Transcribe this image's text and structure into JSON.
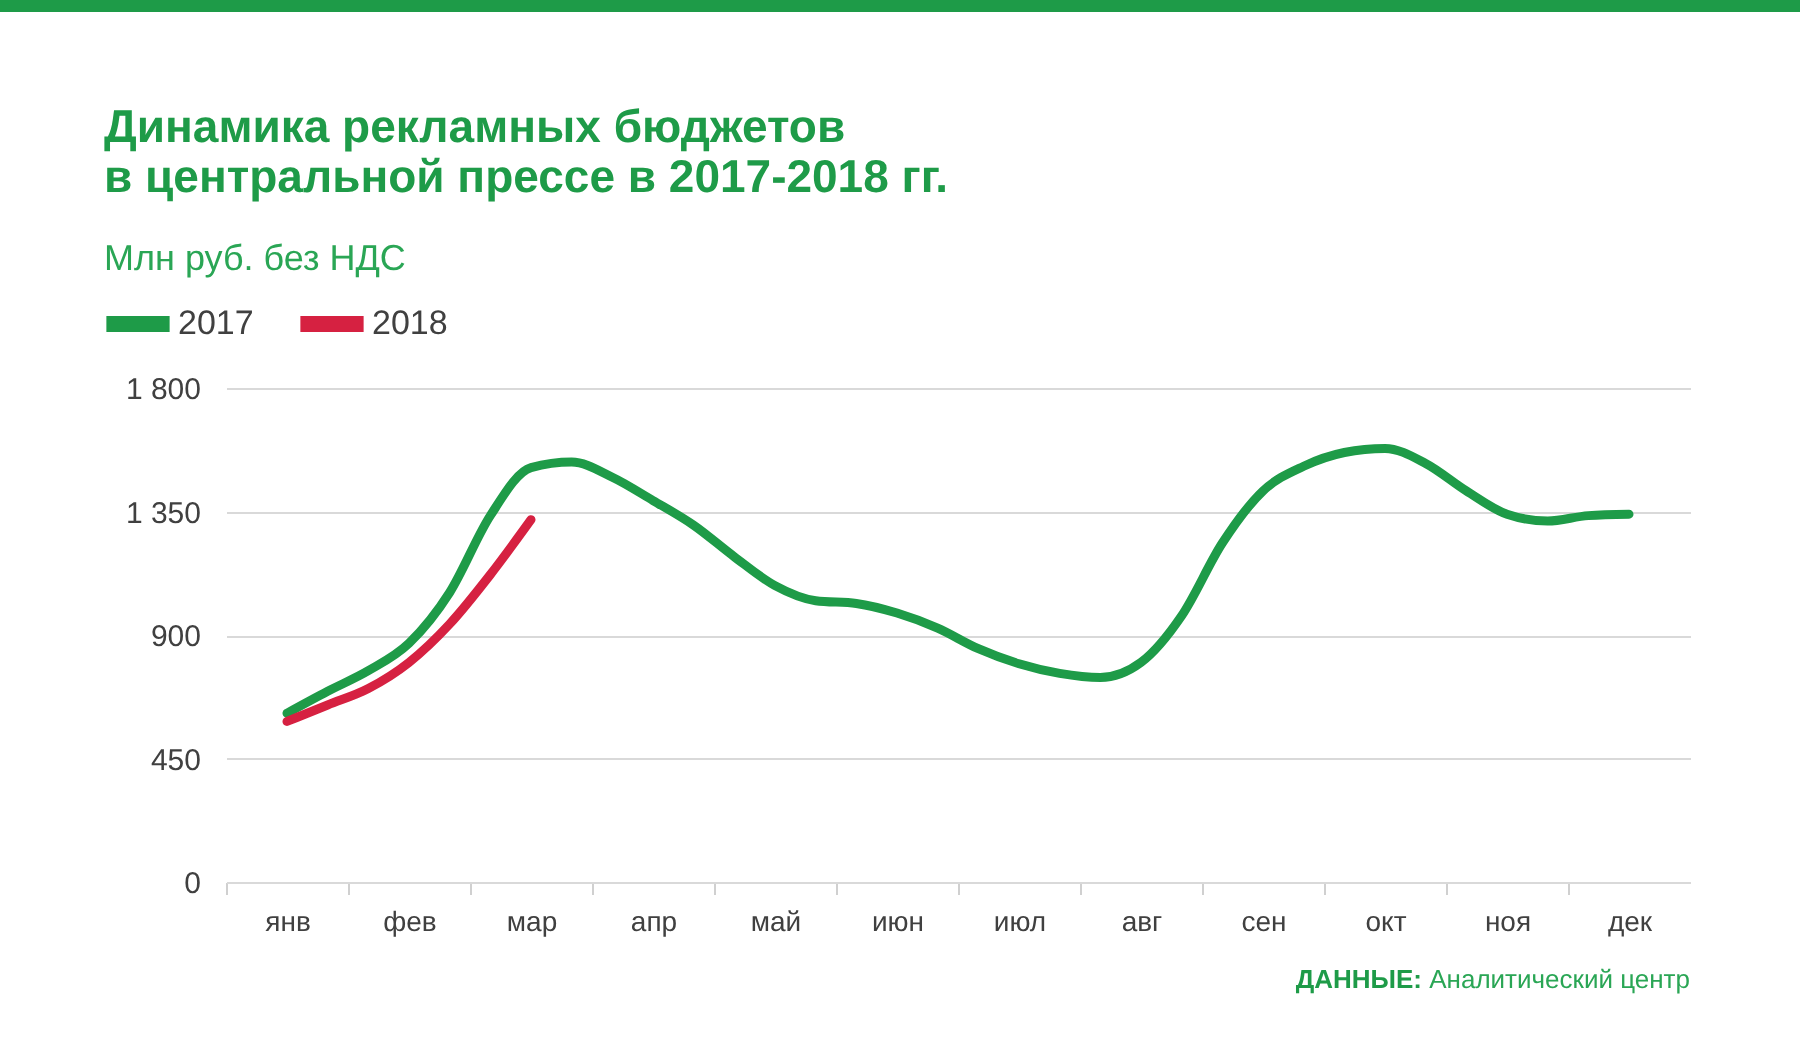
{
  "chart_data": {
    "type": "line",
    "title": "Динамика рекламных бюджетов\nв центральной прессе в 2017-2018 гг.",
    "subtitle": "Млн руб. без НДС",
    "annotations": [
      "ДАННЫЕ: Аналитический центр"
    ],
    "categories": [
      null,
      "янв",
      null,
      null,
      "фев",
      null,
      null,
      "мар",
      null,
      null,
      "апр",
      null,
      null,
      "май",
      null,
      null,
      "июн",
      null,
      null,
      "июл",
      null,
      null,
      "авг",
      null,
      null,
      "сен",
      null,
      null,
      "окт",
      null,
      null,
      "ноя",
      null,
      null,
      "дек",
      null
    ],
    "ylim": [
      0,
      1800
    ],
    "yticks": [
      0,
      450,
      900,
      {
        "value": 1350,
        "label": "1 350"
      },
      {
        "value": 1800,
        "label": "1 800"
      }
    ],
    "grid": "y",
    "legend": "top left",
    "series": [
      {
        "name": "2017",
        "color": "#1e9b48",
        "values": [
          null,
          615,
          695,
          770,
          870,
          1055,
          1335,
          1510,
          1530,
          1475,
          1390,
          1300,
          1185,
          1080,
          1025,
          1015,
          980,
          925,
          850,
          795,
          760,
          745,
          800,
          970,
          1235,
          1425,
          1515,
          1565,
          1580,
          1525,
          1425,
          1340,
          1315,
          1335,
          1340,
          null
        ]
      },
      {
        "name": "2018",
        "color": "#d62141",
        "values": [
          null,
          585,
          645,
          705,
          800,
          940,
          1120,
          1320,
          null,
          null,
          null,
          null,
          null,
          null,
          null,
          null,
          null,
          null,
          null,
          null,
          null,
          null,
          null,
          null,
          null,
          null,
          null,
          null,
          null,
          null,
          null,
          null,
          null,
          null,
          null,
          null
        ]
      }
    ]
  }
}
